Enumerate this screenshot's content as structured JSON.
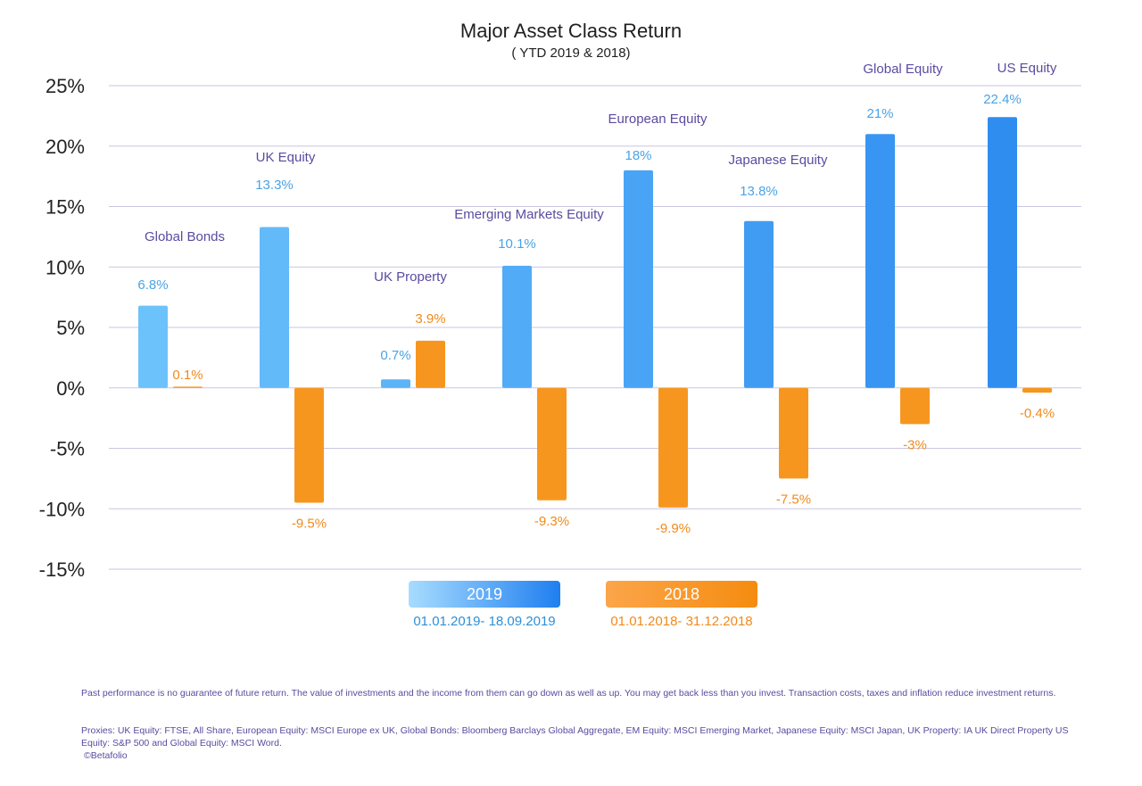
{
  "chart_data": {
    "type": "bar",
    "title": "Major Asset Class Return",
    "subtitle": "( YTD 2019 & 2018)",
    "categories": [
      "Global Bonds",
      "UK Equity",
      "UK Property",
      "Emerging Markets Equity",
      "European Equity",
      "Japanese Equity",
      "Global Equity",
      "US Equity"
    ],
    "series": [
      {
        "name": "2019",
        "values": [
          6.8,
          13.3,
          0.7,
          10.1,
          18,
          13.8,
          21,
          22.4
        ],
        "labels": [
          "6.8%",
          "13.3%",
          "0.7%",
          "10.1%",
          "18%",
          "13.8%",
          "21%",
          "22.4%"
        ]
      },
      {
        "name": "2018",
        "values": [
          0.1,
          -9.5,
          3.9,
          -9.3,
          -9.9,
          -7.5,
          -3,
          -0.4
        ],
        "labels": [
          "0.1%",
          "-9.5%",
          "3.9%",
          "-9.3%",
          "-9.9%",
          "-7.5%",
          "-3%",
          "-0.4%"
        ]
      }
    ],
    "yticks": [
      "25%",
      "20%",
      "15%",
      "10%",
      "5%",
      "0%",
      "-5%",
      "-10%",
      "-15%"
    ],
    "ylim": [
      -15,
      25
    ],
    "grid": true,
    "legend_position": "bottom-center"
  },
  "legend": {
    "items": [
      {
        "label": "2019",
        "range": "01.01.2019- 18.09.2019"
      },
      {
        "label": "2018",
        "range": "01.01.2018- 31.12.2018"
      }
    ]
  },
  "footer": {
    "disclaimer": "Past performance is no guarantee of future return. The value of investments and the income from them can go down as well as up. You may get back less than you invest. Transaction costs, taxes and inflation reduce investment returns.",
    "proxies": "Proxies: UK Equity: FTSE, All Share, European Equity: MSCI Europe ex UK, Global Bonds: Bloomberg Barclays Global Aggregate, EM Equity: MSCI Emerging Market, Japanese Equity: MSCI Japan, UK Property: IA UK Direct Property US Equity: S&P 500 and Global Equity: MSCI Word.",
    "copyright": "©Betafolio"
  },
  "colors": {
    "bar_2019_light": "#6cc2fb",
    "bar_2019_dark": "#2f8df0",
    "bar_2018": "#f7961f",
    "grid": "#c9c6e0",
    "category_label": "#5b4aa0",
    "value_2019": "#4aa3e6",
    "value_2018": "#f08a1c"
  }
}
